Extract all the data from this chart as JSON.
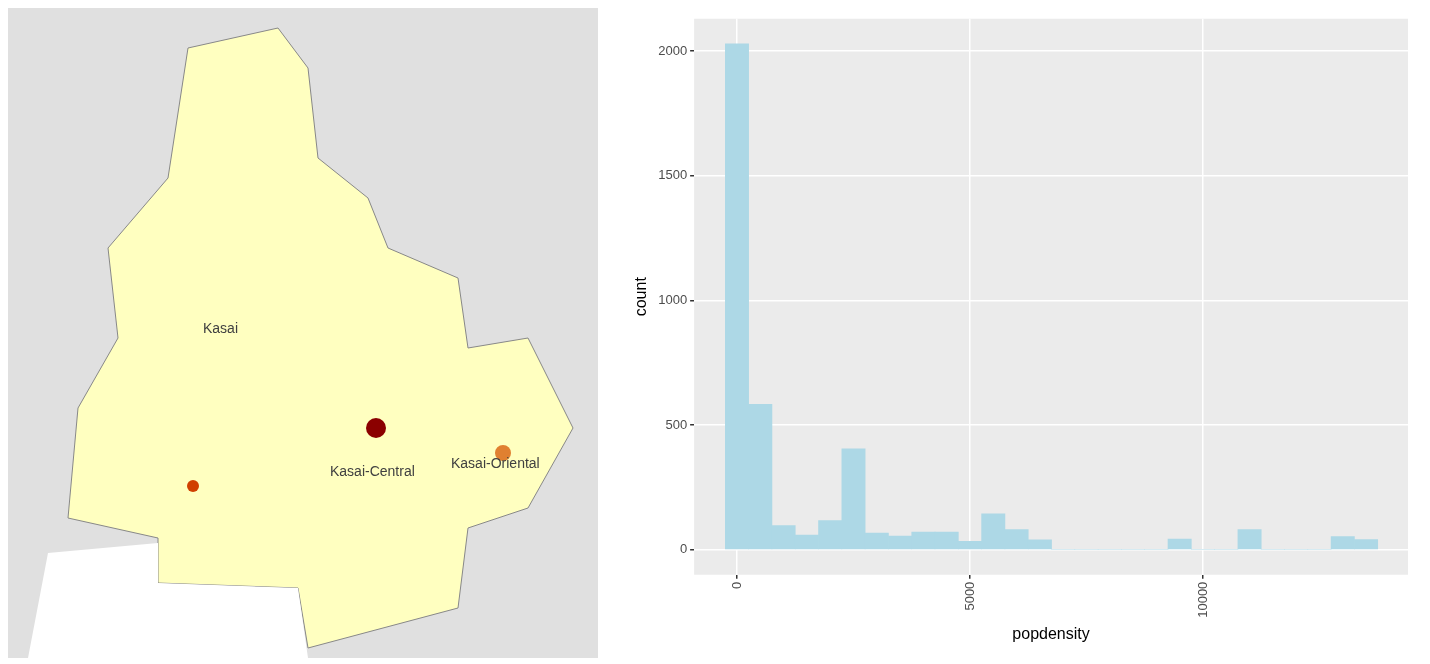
{
  "chart_data": [
    {
      "type": "other",
      "annotations": [
        "Kasai",
        "Kasai-Central",
        "Kasai-Oriental"
      ]
    },
    {
      "type": "histogram",
      "xlabel": "popdensity",
      "ylabel": "count",
      "color": "#add8e6",
      "bins": [
        -250,
        250,
        750,
        1250,
        1750,
        2250,
        2750,
        3250,
        3750,
        4250,
        4750,
        5250,
        5750,
        6250,
        6750,
        7250,
        7750,
        8250,
        8750,
        9250,
        9750,
        10250,
        10750,
        11250,
        11750,
        12250,
        12750,
        13250,
        13750
      ],
      "values": [
        2030,
        583,
        97,
        59,
        117,
        405,
        67,
        55,
        71,
        71,
        34,
        144,
        81,
        40,
        0,
        0,
        0,
        0,
        0,
        43,
        0,
        0,
        81,
        0,
        0,
        0,
        53,
        41
      ],
      "xlim": [
        -920,
        14400
      ],
      "xticks": [
        0,
        5000,
        10000
      ],
      "ylim": [
        -100,
        2130
      ],
      "yticks": [
        0,
        500,
        1000,
        1500,
        2000
      ],
      "grid": true
    }
  ]
}
